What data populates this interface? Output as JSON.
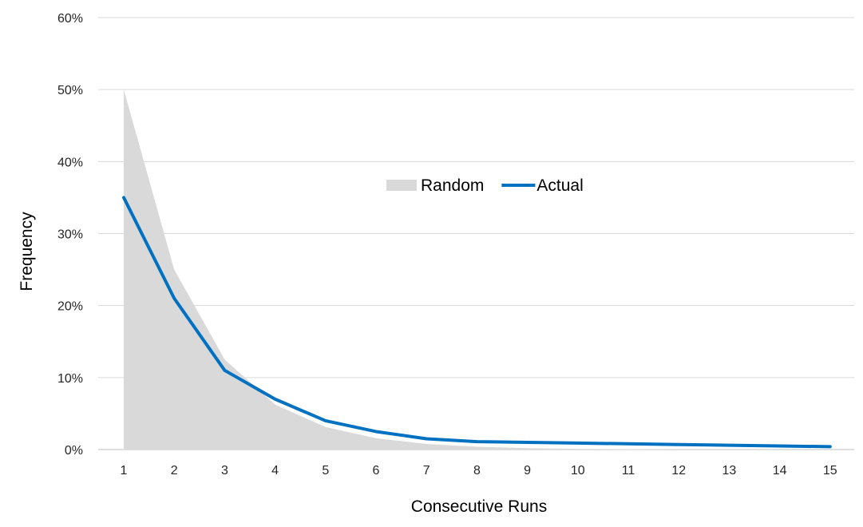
{
  "chart_data": {
    "type": "area",
    "title": "",
    "xlabel": "Consecutive Runs",
    "ylabel": "Frequency",
    "categories": [
      "1",
      "2",
      "3",
      "4",
      "5",
      "6",
      "7",
      "8",
      "9",
      "10",
      "11",
      "12",
      "13",
      "14",
      "15"
    ],
    "y_ticks": [
      "0%",
      "10%",
      "20%",
      "30%",
      "40%",
      "50%",
      "60%"
    ],
    "ylim": [
      0,
      0.6
    ],
    "grid": true,
    "legend_position": "center",
    "series": [
      {
        "name": "Random",
        "kind": "area",
        "color": "#d9d9d9",
        "values": [
          0.5,
          0.25,
          0.125,
          0.0625,
          0.0313,
          0.0156,
          0.0078,
          0.0039,
          0.002,
          0.001,
          0.0005,
          0.0002,
          0.0001,
          0.0001,
          0.0
        ]
      },
      {
        "name": "Actual",
        "kind": "line",
        "color": "#0070c0",
        "values": [
          0.35,
          0.21,
          0.11,
          0.07,
          0.04,
          0.025,
          0.015,
          0.011,
          0.01,
          0.009,
          0.008,
          0.007,
          0.006,
          0.005,
          0.004
        ]
      }
    ]
  }
}
